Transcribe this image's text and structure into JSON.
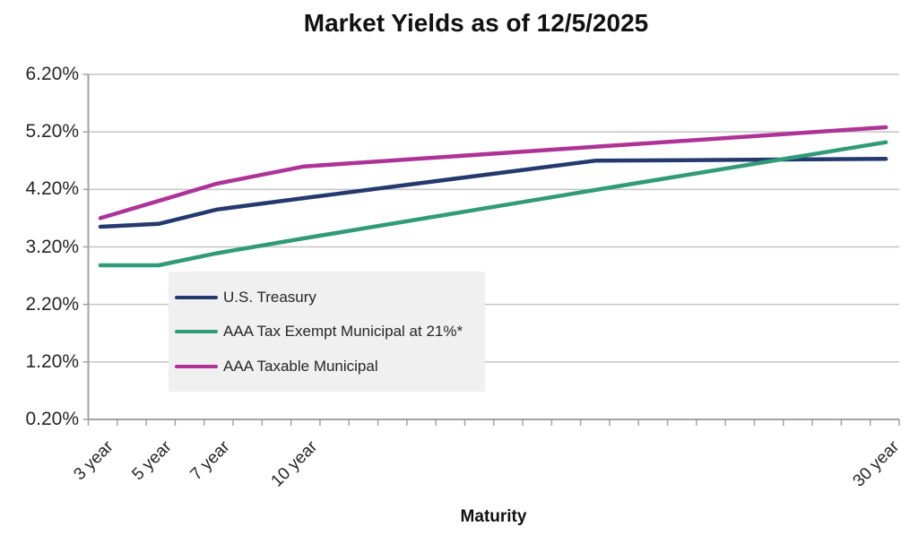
{
  "title": "Market Yields as of 12/5/2025",
  "x_axis": {
    "label": "Maturity",
    "ticks": [
      {
        "year": 3,
        "label": "3 year"
      },
      {
        "year": 5,
        "label": "5 year"
      },
      {
        "year": 7,
        "label": "7 year"
      },
      {
        "year": 10,
        "label": "10 year"
      },
      {
        "year": 30,
        "label": "30 year"
      }
    ]
  },
  "y_axis": {
    "tick_labels": [
      "6.20%",
      "5.20%",
      "4.20%",
      "3.20%",
      "2.20%",
      "1.20%",
      "0.20%"
    ],
    "tick_values": [
      6.2,
      5.2,
      4.2,
      3.2,
      2.2,
      1.2,
      0.2
    ]
  },
  "legend": {
    "entries": [
      "U.S. Treasury",
      "AAA Tax Exempt Municipal at 21%*",
      "AAA Taxable Municipal"
    ]
  },
  "colors": {
    "treasury": "#243A6E",
    "tax_exempt": "#2F9B77",
    "taxable": "#AD3397",
    "gridline": "#c4c4c4",
    "axis": "#a3a3a3",
    "legend_bg": "#f0f0f0",
    "text": "#262626"
  },
  "chart_data": {
    "type": "line",
    "title": "Market Yields as of 12/5/2025",
    "xlabel": "Maturity",
    "ylabel": "",
    "x": [
      3,
      5,
      7,
      10,
      20,
      30
    ],
    "x_unit": "year",
    "series": [
      {
        "name": "U.S. Treasury",
        "color": "#243A6E",
        "values": [
          3.55,
          3.6,
          3.85,
          4.05,
          4.7,
          4.73
        ]
      },
      {
        "name": "AAA Tax Exempt Municipal at 21%*",
        "color": "#2F9B77",
        "values": [
          2.88,
          2.88,
          3.09,
          3.35,
          4.19,
          5.02
        ]
      },
      {
        "name": "AAA Taxable Municipal",
        "color": "#AD3397",
        "values": [
          3.7,
          4.0,
          4.3,
          4.6,
          4.94,
          5.28
        ]
      }
    ],
    "ylim": [
      0.2,
      6.2
    ],
    "y_major_unit": 1.0,
    "grid": true,
    "legend_position": "inside-left-bottom",
    "values_unit": "%"
  }
}
